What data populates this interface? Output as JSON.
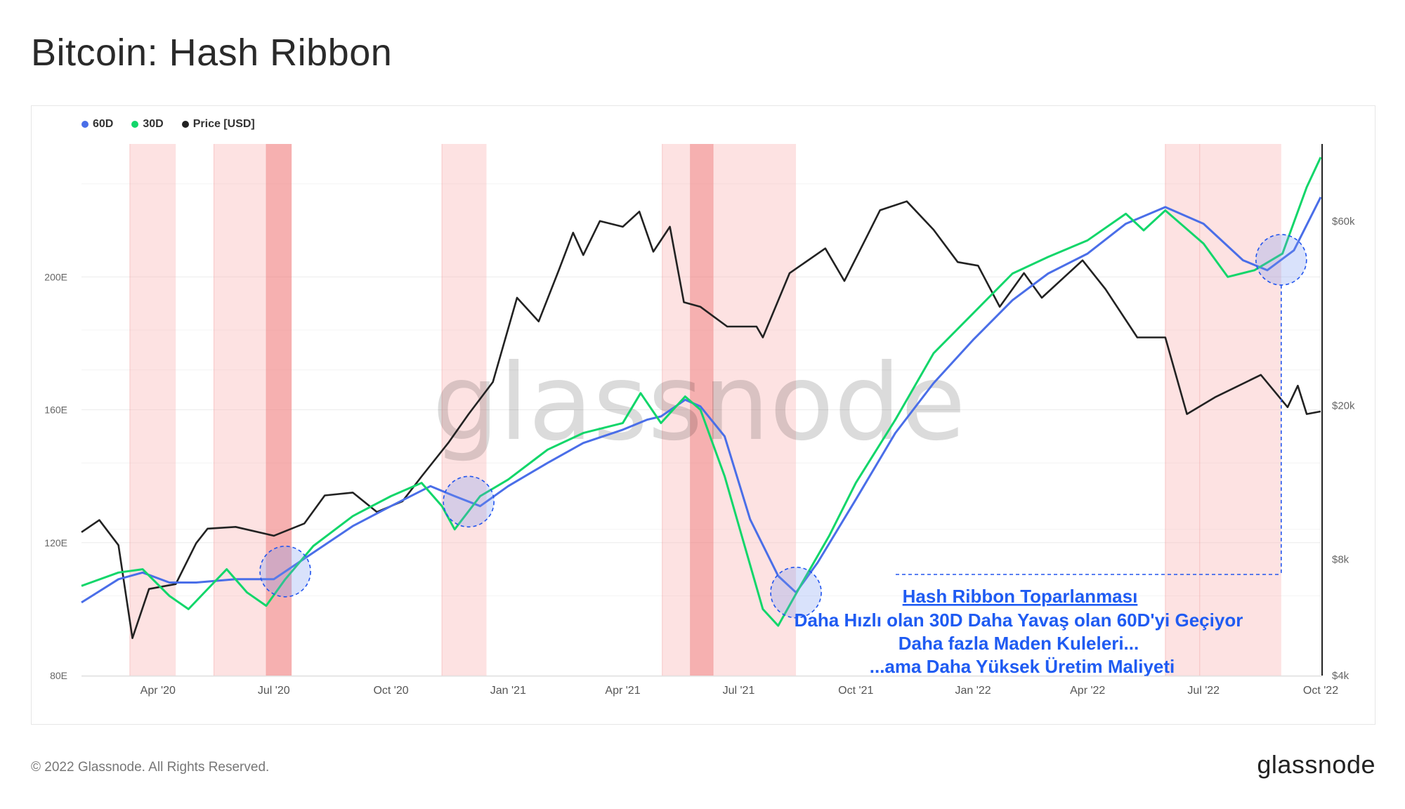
{
  "page": {
    "title": "Bitcoin: Hash Ribbon",
    "copyright": "© 2022 Glassnode. All Rights Reserved.",
    "logo": "glassnode",
    "watermark": "glassnode"
  },
  "chart_data": {
    "type": "line",
    "title": "Bitcoin: Hash Ribbon",
    "legend": {
      "placement": "top-left",
      "items": [
        {
          "label": "60D",
          "color": "#4a6ee8"
        },
        {
          "label": "30D",
          "color": "#12d66a"
        },
        {
          "label": "Price [USD]",
          "color": "#222222"
        }
      ]
    },
    "x_ticks": [
      "Apr '20",
      "Jul '20",
      "Oct '20",
      "Jan '21",
      "Apr '21",
      "Jul '21",
      "Oct '21",
      "Jan '22",
      "Apr '22",
      "Jul '22",
      "Oct '22"
    ],
    "x_tick_dates": [
      "2020-04-01",
      "2020-07-01",
      "2020-10-01",
      "2021-01-01",
      "2021-04-01",
      "2021-07-01",
      "2021-10-01",
      "2022-01-01",
      "2022-04-01",
      "2022-07-01",
      "2022-10-01"
    ],
    "xlim": [
      "2020-02-01",
      "2022-10-01"
    ],
    "y_left": {
      "ticks": [
        "80E",
        "120E",
        "160E",
        "200E"
      ],
      "tick_values": [
        80,
        120,
        160,
        200
      ],
      "ylim": [
        80,
        240
      ],
      "unit": "E"
    },
    "y_right": {
      "ticks": [
        "$4k",
        "$8k",
        "$20k",
        "$60k"
      ],
      "tick_values": [
        4000,
        8000,
        20000,
        60000
      ],
      "scale": "log",
      "ylim": [
        4000,
        95000
      ]
    },
    "grid": true,
    "series": [
      {
        "name": "60D",
        "axis": "left",
        "color": "#4a6ee8",
        "points": [
          [
            "2020-02-01",
            102
          ],
          [
            "2020-03-01",
            109
          ],
          [
            "2020-03-20",
            111
          ],
          [
            "2020-04-10",
            108
          ],
          [
            "2020-05-01",
            108
          ],
          [
            "2020-06-01",
            109
          ],
          [
            "2020-07-01",
            109
          ],
          [
            "2020-08-01",
            117
          ],
          [
            "2020-09-01",
            125
          ],
          [
            "2020-10-01",
            131
          ],
          [
            "2020-11-01",
            137
          ],
          [
            "2020-11-20",
            134
          ],
          [
            "2020-12-10",
            131
          ],
          [
            "2021-01-01",
            137
          ],
          [
            "2021-02-01",
            144
          ],
          [
            "2021-03-01",
            150
          ],
          [
            "2021-04-01",
            154
          ],
          [
            "2021-04-20",
            157
          ],
          [
            "2021-05-01",
            158
          ],
          [
            "2021-05-20",
            163
          ],
          [
            "2021-06-01",
            161
          ],
          [
            "2021-06-20",
            152
          ],
          [
            "2021-07-10",
            127
          ],
          [
            "2021-08-01",
            110
          ],
          [
            "2021-08-15",
            105
          ],
          [
            "2021-09-01",
            114
          ],
          [
            "2021-10-01",
            133
          ],
          [
            "2021-11-01",
            153
          ],
          [
            "2021-12-01",
            168
          ],
          [
            "2022-01-01",
            181
          ],
          [
            "2022-02-01",
            193
          ],
          [
            "2022-03-01",
            201
          ],
          [
            "2022-04-01",
            207
          ],
          [
            "2022-05-01",
            216
          ],
          [
            "2022-06-01",
            221
          ],
          [
            "2022-07-01",
            216
          ],
          [
            "2022-08-01",
            205
          ],
          [
            "2022-08-20",
            202
          ],
          [
            "2022-09-10",
            208
          ],
          [
            "2022-10-01",
            224
          ]
        ]
      },
      {
        "name": "30D",
        "axis": "left",
        "color": "#12d66a",
        "points": [
          [
            "2020-02-01",
            107
          ],
          [
            "2020-03-01",
            111
          ],
          [
            "2020-03-20",
            112
          ],
          [
            "2020-04-10",
            104
          ],
          [
            "2020-04-25",
            100
          ],
          [
            "2020-05-15",
            108
          ],
          [
            "2020-05-25",
            112
          ],
          [
            "2020-06-10",
            105
          ],
          [
            "2020-06-25",
            101
          ],
          [
            "2020-07-10",
            109
          ],
          [
            "2020-08-01",
            119
          ],
          [
            "2020-09-01",
            128
          ],
          [
            "2020-10-01",
            134
          ],
          [
            "2020-10-25",
            138
          ],
          [
            "2020-11-10",
            131
          ],
          [
            "2020-11-20",
            124
          ],
          [
            "2020-12-10",
            134
          ],
          [
            "2021-01-01",
            139
          ],
          [
            "2021-02-01",
            148
          ],
          [
            "2021-03-01",
            153
          ],
          [
            "2021-04-01",
            156
          ],
          [
            "2021-04-15",
            165
          ],
          [
            "2021-05-01",
            156
          ],
          [
            "2021-05-20",
            164
          ],
          [
            "2021-06-01",
            160
          ],
          [
            "2021-06-20",
            140
          ],
          [
            "2021-07-05",
            120
          ],
          [
            "2021-07-20",
            100
          ],
          [
            "2021-08-01",
            95
          ],
          [
            "2021-08-20",
            108
          ],
          [
            "2021-09-10",
            122
          ],
          [
            "2021-10-01",
            138
          ],
          [
            "2021-11-01",
            157
          ],
          [
            "2021-12-01",
            177
          ],
          [
            "2022-01-01",
            189
          ],
          [
            "2022-02-01",
            201
          ],
          [
            "2022-03-01",
            206
          ],
          [
            "2022-04-01",
            211
          ],
          [
            "2022-05-01",
            219
          ],
          [
            "2022-05-15",
            214
          ],
          [
            "2022-06-01",
            220
          ],
          [
            "2022-07-01",
            210
          ],
          [
            "2022-07-20",
            200
          ],
          [
            "2022-08-10",
            202
          ],
          [
            "2022-09-01",
            207
          ],
          [
            "2022-09-20",
            227
          ],
          [
            "2022-10-01",
            236
          ]
        ]
      },
      {
        "name": "Price [USD]",
        "axis": "right",
        "color": "#222222",
        "points": [
          [
            "2020-02-01",
            9400
          ],
          [
            "2020-02-15",
            10100
          ],
          [
            "2020-03-01",
            8700
          ],
          [
            "2020-03-12",
            5000
          ],
          [
            "2020-03-25",
            6700
          ],
          [
            "2020-04-15",
            6900
          ],
          [
            "2020-05-01",
            8800
          ],
          [
            "2020-05-10",
            9600
          ],
          [
            "2020-06-01",
            9700
          ],
          [
            "2020-07-01",
            9200
          ],
          [
            "2020-07-25",
            9900
          ],
          [
            "2020-08-10",
            11700
          ],
          [
            "2020-09-01",
            11900
          ],
          [
            "2020-09-20",
            10600
          ],
          [
            "2020-10-10",
            11300
          ],
          [
            "2020-10-25",
            13100
          ],
          [
            "2020-11-15",
            16000
          ],
          [
            "2020-12-01",
            19000
          ],
          [
            "2020-12-20",
            23000
          ],
          [
            "2021-01-08",
            38000
          ],
          [
            "2021-01-25",
            33000
          ],
          [
            "2021-02-10",
            45000
          ],
          [
            "2021-02-21",
            56000
          ],
          [
            "2021-03-01",
            49000
          ],
          [
            "2021-03-14",
            60000
          ],
          [
            "2021-04-01",
            58000
          ],
          [
            "2021-04-14",
            63500
          ],
          [
            "2021-04-25",
            50000
          ],
          [
            "2021-05-08",
            58000
          ],
          [
            "2021-05-19",
            37000
          ],
          [
            "2021-06-01",
            36000
          ],
          [
            "2021-06-22",
            32000
          ],
          [
            "2021-07-15",
            32000
          ],
          [
            "2021-07-20",
            30000
          ],
          [
            "2021-08-10",
            44000
          ],
          [
            "2021-09-07",
            51000
          ],
          [
            "2021-09-22",
            42000
          ],
          [
            "2021-10-10",
            55000
          ],
          [
            "2021-10-20",
            64000
          ],
          [
            "2021-11-10",
            67500
          ],
          [
            "2021-12-01",
            57000
          ],
          [
            "2021-12-20",
            47000
          ],
          [
            "2022-01-05",
            46000
          ],
          [
            "2022-01-22",
            36000
          ],
          [
            "2022-02-10",
            44000
          ],
          [
            "2022-02-24",
            38000
          ],
          [
            "2022-03-28",
            47500
          ],
          [
            "2022-04-15",
            40000
          ],
          [
            "2022-05-10",
            30000
          ],
          [
            "2022-06-01",
            30000
          ],
          [
            "2022-06-18",
            19000
          ],
          [
            "2022-07-10",
            21000
          ],
          [
            "2022-08-15",
            24000
          ],
          [
            "2022-09-05",
            19800
          ],
          [
            "2022-09-13",
            22500
          ],
          [
            "2022-09-20",
            19000
          ],
          [
            "2022-10-01",
            19300
          ]
        ]
      }
    ],
    "shaded_bands": [
      {
        "start": "2020-03-10",
        "end": "2020-04-15",
        "level": "light"
      },
      {
        "start": "2020-05-15",
        "end": "2020-06-25",
        "level": "light"
      },
      {
        "start": "2020-06-25",
        "end": "2020-07-15",
        "level": "dark"
      },
      {
        "start": "2020-11-10",
        "end": "2020-12-15",
        "level": "light"
      },
      {
        "start": "2021-05-02",
        "end": "2021-05-24",
        "level": "light"
      },
      {
        "start": "2021-05-24",
        "end": "2021-06-11",
        "level": "dark"
      },
      {
        "start": "2021-06-11",
        "end": "2021-08-15",
        "level": "light"
      },
      {
        "start": "2022-06-01",
        "end": "2022-06-28",
        "level": "light"
      },
      {
        "start": "2022-06-28",
        "end": "2022-08-31",
        "level": "light"
      }
    ],
    "highlight_circles": [
      "2020-07-10",
      "2020-12-01",
      "2021-08-15",
      "2022-08-31"
    ],
    "annotation": {
      "lines": [
        "Hash Ribbon Toparlanması",
        "Daha Hızlı olan 30D Daha Yavaş olan 60D'yi Geçiyor",
        "Daha fazla Maden Kuleleri...",
        "...ama Daha Yüksek Üretim Maliyeti"
      ],
      "color": "#1f5bf2"
    }
  }
}
